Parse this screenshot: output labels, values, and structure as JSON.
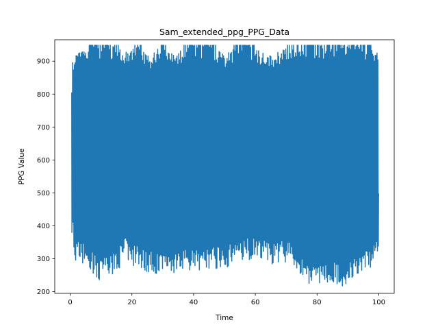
{
  "chart_data": {
    "type": "line",
    "title": "Sam_extended_ppg_PPG_Data",
    "xlabel": "Time",
    "ylabel": "PPG Value",
    "xlim": [
      -5,
      105
    ],
    "ylim": [
      195,
      965
    ],
    "xticks": [
      0,
      20,
      40,
      60,
      80,
      100
    ],
    "yticks": [
      200,
      300,
      400,
      500,
      600,
      700,
      800,
      900
    ],
    "grid": false,
    "legend": "none",
    "series": [
      {
        "color": "#1f77b4",
        "x_range": [
          0.5,
          100
        ],
        "start_value": 805,
        "end_value": 490,
        "envelope": [
          {
            "t": 0.5,
            "min": 800,
            "max": 905
          },
          {
            "t": 1,
            "min": 300,
            "max": 905
          },
          {
            "t": 2,
            "min": 290,
            "max": 940
          },
          {
            "t": 5,
            "min": 280,
            "max": 935
          },
          {
            "t": 8,
            "min": 250,
            "max": 948
          },
          {
            "t": 10,
            "min": 228,
            "max": 948
          },
          {
            "t": 14,
            "min": 250,
            "max": 948
          },
          {
            "t": 18,
            "min": 295,
            "max": 930
          },
          {
            "t": 22,
            "min": 270,
            "max": 948
          },
          {
            "t": 26,
            "min": 255,
            "max": 920
          },
          {
            "t": 30,
            "min": 250,
            "max": 948
          },
          {
            "t": 34,
            "min": 255,
            "max": 920
          },
          {
            "t": 38,
            "min": 260,
            "max": 948
          },
          {
            "t": 42,
            "min": 260,
            "max": 948
          },
          {
            "t": 46,
            "min": 270,
            "max": 948
          },
          {
            "t": 50,
            "min": 270,
            "max": 920
          },
          {
            "t": 54,
            "min": 290,
            "max": 948
          },
          {
            "t": 58,
            "min": 295,
            "max": 948
          },
          {
            "t": 62,
            "min": 295,
            "max": 930
          },
          {
            "t": 66,
            "min": 280,
            "max": 910
          },
          {
            "t": 68,
            "min": 290,
            "max": 935
          },
          {
            "t": 72,
            "min": 280,
            "max": 948
          },
          {
            "t": 76,
            "min": 230,
            "max": 948
          },
          {
            "t": 80,
            "min": 215,
            "max": 948
          },
          {
            "t": 84,
            "min": 230,
            "max": 948
          },
          {
            "t": 88,
            "min": 213,
            "max": 948
          },
          {
            "t": 92,
            "min": 240,
            "max": 948
          },
          {
            "t": 96,
            "min": 255,
            "max": 948
          },
          {
            "t": 100,
            "min": 295,
            "max": 930
          }
        ]
      }
    ]
  }
}
